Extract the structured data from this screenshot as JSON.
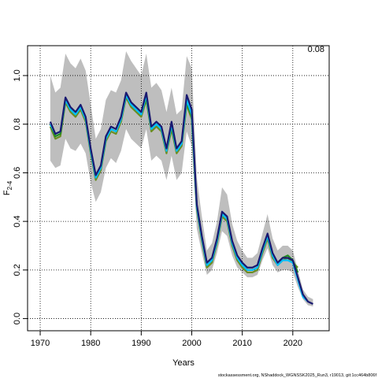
{
  "chart_data": {
    "type": "line",
    "annotation": "0.08",
    "xlabel": "Years",
    "ylabel": "F",
    "ylabel_sub": "2-4",
    "footer": "stockassessment.org, NShaddock_WGNSSK2025_Run3, r19013, git:1cc464b806f",
    "x": [
      1972,
      1973,
      1974,
      1975,
      1976,
      1977,
      1978,
      1979,
      1980,
      1981,
      1982,
      1983,
      1984,
      1985,
      1986,
      1987,
      1988,
      1989,
      1990,
      1991,
      1992,
      1993,
      1994,
      1995,
      1996,
      1997,
      1998,
      1999,
      2000,
      2001,
      2002,
      2003,
      2004,
      2005,
      2006,
      2007,
      2008,
      2009,
      2010,
      2011,
      2012,
      2013,
      2014,
      2015,
      2016,
      2017,
      2018,
      2019,
      2020,
      2021,
      2022,
      2023,
      2024
    ],
    "band": {
      "color": "#bebebe",
      "upper": [
        1.0,
        0.93,
        0.95,
        1.09,
        1.05,
        1.03,
        1.07,
        1.02,
        0.88,
        0.74,
        0.78,
        0.9,
        0.94,
        0.93,
        0.98,
        1.1,
        1.06,
        1.03,
        1.0,
        1.09,
        0.95,
        0.97,
        0.94,
        0.85,
        0.95,
        0.84,
        0.86,
        1.08,
        1.03,
        0.58,
        0.42,
        0.28,
        0.31,
        0.4,
        0.54,
        0.51,
        0.39,
        0.32,
        0.28,
        0.25,
        0.25,
        0.27,
        0.35,
        0.43,
        0.33,
        0.28,
        0.3,
        0.3,
        0.28,
        0.2,
        0.12,
        0.09,
        0.08
      ],
      "lower": [
        0.65,
        0.62,
        0.63,
        0.74,
        0.7,
        0.69,
        0.72,
        0.68,
        0.56,
        0.48,
        0.52,
        0.62,
        0.66,
        0.64,
        0.69,
        0.78,
        0.74,
        0.72,
        0.7,
        0.78,
        0.65,
        0.67,
        0.65,
        0.57,
        0.67,
        0.57,
        0.6,
        0.77,
        0.71,
        0.37,
        0.27,
        0.18,
        0.2,
        0.27,
        0.36,
        0.34,
        0.26,
        0.21,
        0.19,
        0.17,
        0.17,
        0.18,
        0.24,
        0.29,
        0.22,
        0.19,
        0.2,
        0.2,
        0.19,
        0.13,
        0.08,
        0.055,
        0.05
      ]
    },
    "series": [
      {
        "color": "#6b8e23",
        "values": [
          0.79,
          0.74,
          0.75,
          0.89,
          0.85,
          0.83,
          0.86,
          0.81,
          0.68,
          0.57,
          0.61,
          0.73,
          0.77,
          0.76,
          0.81,
          0.91,
          0.87,
          0.85,
          0.83,
          0.9,
          0.77,
          0.79,
          0.77,
          0.68,
          0.78,
          0.68,
          0.71,
          0.88,
          0.82,
          0.45,
          0.32,
          0.21,
          0.23,
          0.31,
          0.42,
          0.4,
          0.3,
          0.24,
          0.21,
          0.19,
          0.19,
          0.2,
          0.27,
          0.33,
          0.25,
          0.22,
          0.24,
          0.25,
          0.23,
          0.21,
          null,
          null,
          null
        ]
      },
      {
        "color": "#228b22",
        "values": [
          0.8,
          0.75,
          0.76,
          0.9,
          0.86,
          0.84,
          0.87,
          0.82,
          0.69,
          0.58,
          0.62,
          0.74,
          0.78,
          0.77,
          0.82,
          0.92,
          0.88,
          0.86,
          0.84,
          0.91,
          0.78,
          0.8,
          0.78,
          0.69,
          0.79,
          0.69,
          0.72,
          0.89,
          0.83,
          0.46,
          0.33,
          0.22,
          0.24,
          0.32,
          0.43,
          0.41,
          0.31,
          0.25,
          0.22,
          0.2,
          0.2,
          0.21,
          0.28,
          0.34,
          0.26,
          0.23,
          0.25,
          0.26,
          0.24,
          0.19,
          null,
          null,
          null
        ]
      },
      {
        "color": "#00bfff",
        "values": [
          0.8,
          0.76,
          0.77,
          0.9,
          0.86,
          0.84,
          0.87,
          0.82,
          0.69,
          0.58,
          0.62,
          0.74,
          0.78,
          0.77,
          0.82,
          0.92,
          0.88,
          0.86,
          0.84,
          0.92,
          0.78,
          0.8,
          0.78,
          0.69,
          0.8,
          0.69,
          0.72,
          0.9,
          0.84,
          0.46,
          0.33,
          0.22,
          0.24,
          0.32,
          0.43,
          0.41,
          0.31,
          0.25,
          0.22,
          0.2,
          0.2,
          0.21,
          0.28,
          0.34,
          0.26,
          0.22,
          0.24,
          0.24,
          0.23,
          0.16,
          0.09,
          0.07,
          null
        ]
      },
      {
        "color": "#191970",
        "values": [
          0.81,
          0.76,
          0.77,
          0.91,
          0.87,
          0.85,
          0.88,
          0.83,
          0.7,
          0.59,
          0.63,
          0.75,
          0.79,
          0.78,
          0.83,
          0.93,
          0.89,
          0.87,
          0.85,
          0.93,
          0.79,
          0.81,
          0.79,
          0.7,
          0.81,
          0.7,
          0.73,
          0.92,
          0.86,
          0.47,
          0.34,
          0.23,
          0.25,
          0.33,
          0.44,
          0.42,
          0.32,
          0.26,
          0.23,
          0.21,
          0.21,
          0.22,
          0.29,
          0.35,
          0.27,
          0.23,
          0.25,
          0.25,
          0.24,
          0.17,
          0.1,
          0.07,
          0.06
        ]
      }
    ],
    "xlim": [
      1967.5,
      2027.2
    ],
    "ylim": [
      -0.05,
      1.123
    ],
    "xticks": [
      1970,
      1980,
      1990,
      2000,
      2010,
      2020
    ],
    "yticks": [
      {
        "value": 0,
        "label": "0.0"
      },
      0.2,
      0.4,
      0.6,
      0.8,
      {
        "value": 1,
        "label": "1.0"
      }
    ],
    "grid": true
  }
}
